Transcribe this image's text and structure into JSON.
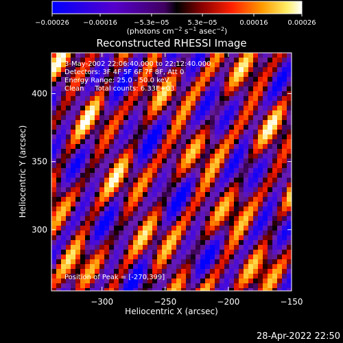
{
  "chart_data": {
    "type": "heatmap",
    "title": "Reconstructed RHESSI Image",
    "xlabel": "Heliocentric X (arcsec)",
    "ylabel": "Heliocentric Y (arcsec)",
    "xlim": [
      -340,
      -150
    ],
    "ylim": [
      255,
      430
    ],
    "x_ticks": [
      -300,
      -250,
      -200,
      -150
    ],
    "x_tick_labels": [
      "−300",
      "−250",
      "−200",
      "−150"
    ],
    "y_ticks": [
      300,
      350,
      400
    ],
    "y_tick_labels": [
      "300",
      "350",
      "400"
    ],
    "colorbar": {
      "min": -0.00026,
      "max": 0.00026,
      "ticks": [
        -0.00026,
        -0.00016,
        -5.3e-05,
        5.3e-05,
        0.00016,
        0.00026
      ],
      "tick_labels": [
        "−0.00026",
        "−0.00016",
        "−5.3e−05",
        "5.3e−05",
        "0.00016",
        "0.00026"
      ],
      "units_main": "(photons cm",
      "units_exp1": "−2",
      "units_mid1": " s",
      "units_exp2": "−1",
      "units_mid2": " asec",
      "units_exp3": "−2",
      "units_end": ")"
    },
    "annotations": {
      "time_range": "3-May-2002 22:06:40.000 to 22:12:40.000",
      "detectors": "Detectors: 3F 4F 5F 6F 7F 8F, Att 0",
      "energy": "Energy Range: 25.0 - 50.0 keV",
      "clean": "Clean     Total counts: 6.33E+03",
      "peak": "Position of Peak = [-270,399]"
    },
    "peak": [
      -270,
      399
    ]
  },
  "footer": {
    "timestamp": "28-Apr-2022 22:50"
  }
}
